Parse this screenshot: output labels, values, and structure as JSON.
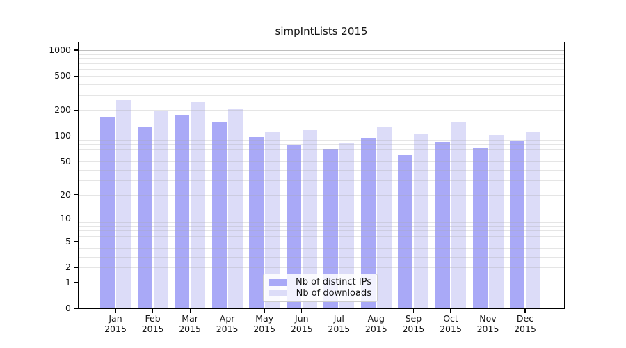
{
  "chart_data": {
    "type": "bar",
    "title": "simpIntLists 2015",
    "categories": [
      "Jan",
      "Feb",
      "Mar",
      "Apr",
      "May",
      "Jun",
      "Jul",
      "Aug",
      "Sep",
      "Oct",
      "Nov",
      "Dec"
    ],
    "year": "2015",
    "series": [
      {
        "name": "Nb of distinct IPs",
        "color": "#a9a9f7",
        "values": [
          165,
          127,
          177,
          142,
          97,
          79,
          70,
          95,
          60,
          85,
          72,
          87
        ]
      },
      {
        "name": "Nb of downloads",
        "color": "#dcdcf8",
        "values": [
          260,
          195,
          245,
          207,
          110,
          116,
          81,
          127,
          106,
          142,
          103,
          112
        ]
      }
    ],
    "xlabel": "",
    "ylabel": "",
    "y_scale": "log10(value+1)",
    "y_ticks": [
      1000,
      500,
      200,
      100,
      50,
      20,
      10,
      5,
      2,
      1,
      0
    ],
    "ylim": [
      0,
      1200
    ],
    "grid": "on",
    "major_grid_values": [
      1,
      10,
      100,
      1000
    ],
    "minor_grid_values": [
      2,
      3,
      4,
      5,
      6,
      7,
      8,
      9,
      20,
      30,
      40,
      50,
      60,
      70,
      80,
      90,
      200,
      300,
      400,
      500,
      600,
      700,
      800,
      900
    ],
    "legend_position": "lower center"
  }
}
